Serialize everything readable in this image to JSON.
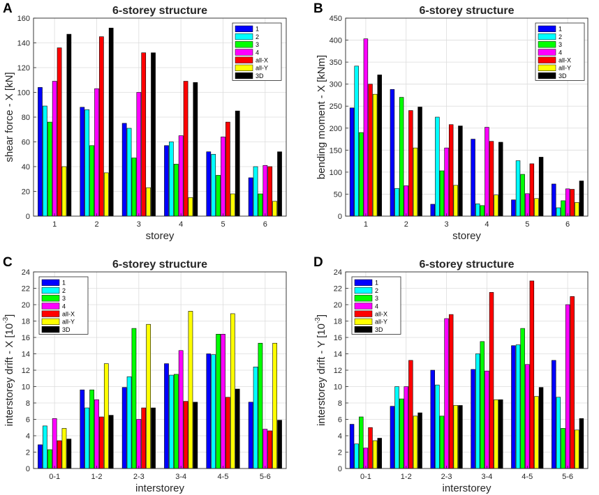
{
  "figure": {
    "title": "6-storey structure"
  },
  "colors": {
    "1": "#0000FF",
    "2": "#00FFFF",
    "3": "#00FF00",
    "4": "#FF00FF",
    "all-X": "#FF0000",
    "all-Y": "#FFFF00",
    "3D": "#000000",
    "grid": "#DCDCDC",
    "axis": "#262626"
  },
  "chart_data": [
    {
      "panel_label": "A",
      "type": "bar",
      "title": "6-storey structure",
      "xlabel": "storey",
      "ylabel": "shear force - X [kN]",
      "ylim": [
        0,
        160
      ],
      "yticks": [
        0,
        20,
        40,
        60,
        80,
        100,
        120,
        140,
        160
      ],
      "grid": true,
      "legend": "top-right",
      "categories": [
        "1",
        "2",
        "3",
        "4",
        "5",
        "6"
      ],
      "series": [
        {
          "name": "1",
          "values": [
            104,
            88,
            75,
            57,
            52,
            31
          ]
        },
        {
          "name": "2",
          "values": [
            89,
            86,
            71,
            60,
            50,
            40
          ]
        },
        {
          "name": "3",
          "values": [
            76,
            57,
            47,
            42,
            33,
            18
          ]
        },
        {
          "name": "4",
          "values": [
            109,
            103,
            100,
            65,
            64,
            41
          ]
        },
        {
          "name": "all-X",
          "values": [
            136,
            145,
            132,
            109,
            76,
            40
          ]
        },
        {
          "name": "all-Y",
          "values": [
            40,
            35,
            23,
            15,
            18,
            12
          ]
        },
        {
          "name": "3D",
          "values": [
            147,
            152,
            132,
            108,
            85,
            52
          ]
        }
      ]
    },
    {
      "panel_label": "B",
      "type": "bar",
      "title": "6-storey structure",
      "xlabel": "storey",
      "ylabel": "bending moment - X [kNm]",
      "ylim": [
        0,
        450
      ],
      "yticks": [
        0,
        50,
        100,
        150,
        200,
        250,
        300,
        350,
        400,
        450
      ],
      "grid": true,
      "legend": "top-right",
      "categories": [
        "1",
        "2",
        "3",
        "4",
        "5",
        "6"
      ],
      "series": [
        {
          "name": "1",
          "values": [
            246,
            288,
            27,
            175,
            37,
            73
          ]
        },
        {
          "name": "2",
          "values": [
            341,
            63,
            225,
            28,
            126,
            19
          ]
        },
        {
          "name": "3",
          "values": [
            190,
            270,
            103,
            24,
            95,
            35
          ]
        },
        {
          "name": "4",
          "values": [
            403,
            69,
            155,
            202,
            51,
            62
          ]
        },
        {
          "name": "all-X",
          "values": [
            300,
            240,
            208,
            170,
            119,
            61
          ]
        },
        {
          "name": "all-Y",
          "values": [
            277,
            155,
            70,
            48,
            40,
            31
          ]
        },
        {
          "name": "3D",
          "values": [
            321,
            248,
            205,
            168,
            134,
            80
          ]
        }
      ]
    },
    {
      "panel_label": "C",
      "type": "bar",
      "title": "6-storey structure",
      "xlabel": "interstorey",
      "ylabel": "interstorey drift - X [10",
      "ylabel_exponent": "-3",
      "ylabel_suffix": "]",
      "ylim": [
        0,
        24
      ],
      "yticks": [
        0,
        2,
        4,
        6,
        8,
        10,
        12,
        14,
        16,
        18,
        20,
        22,
        24
      ],
      "grid": true,
      "legend": "top-left",
      "categories": [
        "0-1",
        "1-2",
        "2-3",
        "3-4",
        "4-5",
        "5-6"
      ],
      "series": [
        {
          "name": "1",
          "values": [
            2.9,
            9.6,
            9.9,
            12.8,
            14.0,
            8.1
          ]
        },
        {
          "name": "2",
          "values": [
            5.2,
            7.4,
            11.2,
            11.4,
            13.9,
            12.4
          ]
        },
        {
          "name": "3",
          "values": [
            2.3,
            9.6,
            17.1,
            11.5,
            16.4,
            15.3
          ]
        },
        {
          "name": "4",
          "values": [
            6.1,
            8.4,
            6.0,
            14.4,
            16.4,
            4.8
          ]
        },
        {
          "name": "all-X",
          "values": [
            3.4,
            6.3,
            7.4,
            8.2,
            8.7,
            4.6
          ]
        },
        {
          "name": "all-Y",
          "values": [
            4.9,
            12.8,
            17.6,
            19.2,
            18.9,
            15.3
          ]
        },
        {
          "name": "3D",
          "values": [
            3.6,
            6.5,
            7.4,
            8.1,
            9.7,
            5.9
          ]
        }
      ]
    },
    {
      "panel_label": "D",
      "type": "bar",
      "title": "6-storey structure",
      "xlabel": "interstorey",
      "ylabel": "interstorey drift - Y [10",
      "ylabel_exponent": "-3",
      "ylabel_suffix": "]",
      "ylim": [
        0,
        24
      ],
      "yticks": [
        0,
        2,
        4,
        6,
        8,
        10,
        12,
        14,
        16,
        18,
        20,
        22,
        24
      ],
      "grid": true,
      "legend": "top-left",
      "categories": [
        "0-1",
        "1-2",
        "2-3",
        "3-4",
        "4-5",
        "5-6"
      ],
      "series": [
        {
          "name": "1",
          "values": [
            5.4,
            7.6,
            12.0,
            12.1,
            15.0,
            13.2
          ]
        },
        {
          "name": "2",
          "values": [
            3.0,
            10.0,
            10.2,
            14.0,
            15.1,
            8.7
          ]
        },
        {
          "name": "3",
          "values": [
            6.3,
            8.5,
            6.4,
            15.5,
            17.1,
            4.9
          ]
        },
        {
          "name": "4",
          "values": [
            2.5,
            10.0,
            18.3,
            11.9,
            12.7,
            20.0
          ]
        },
        {
          "name": "all-X",
          "values": [
            5.0,
            13.2,
            18.8,
            21.5,
            22.9,
            21.0
          ]
        },
        {
          "name": "all-Y",
          "values": [
            3.4,
            6.4,
            7.7,
            8.4,
            8.8,
            4.7
          ]
        },
        {
          "name": "3D",
          "values": [
            3.7,
            6.8,
            7.7,
            8.4,
            9.9,
            6.1
          ]
        }
      ]
    }
  ]
}
